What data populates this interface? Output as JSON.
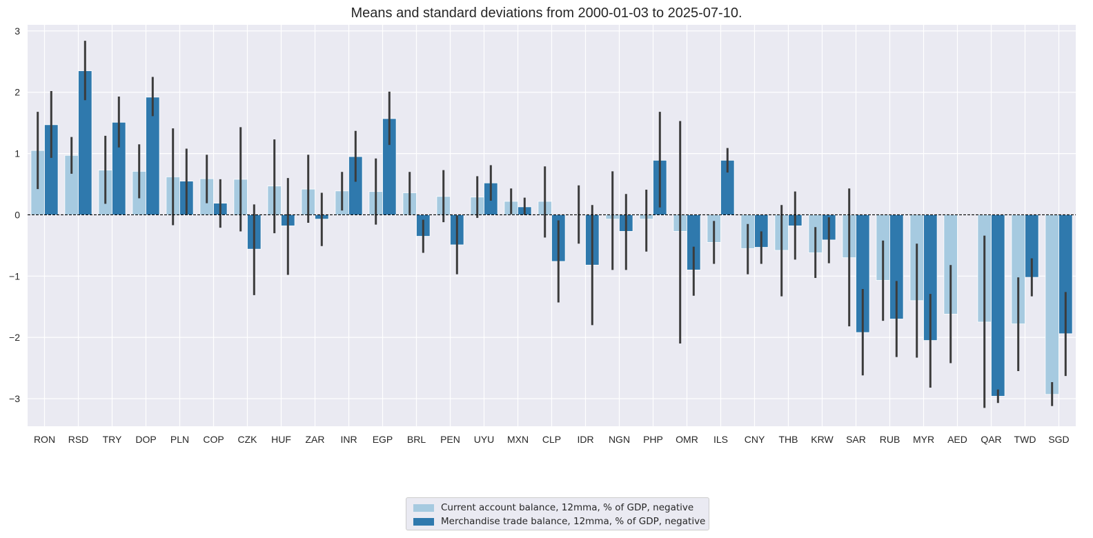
{
  "chart_data": {
    "type": "bar",
    "title": "Means and standard deviations from 2000-01-03 to 2025-07-10.",
    "xlabel": "",
    "ylabel": "",
    "ylim": [
      -3.45,
      3.1
    ],
    "yticks": [
      3,
      2,
      1,
      0,
      -1,
      -2,
      -3
    ],
    "ytick_labels": [
      "3",
      "2",
      "1",
      "0",
      "−1",
      "−2",
      "−3"
    ],
    "grid": true,
    "legend_position": "bottom-center",
    "zero_line": "dashed",
    "error_bars": true,
    "categories": [
      "RON",
      "RSD",
      "TRY",
      "DOP",
      "PLN",
      "COP",
      "CZK",
      "HUF",
      "ZAR",
      "INR",
      "EGP",
      "BRL",
      "PEN",
      "UYU",
      "MXN",
      "CLP",
      "IDR",
      "NGN",
      "PHP",
      "OMR",
      "ILS",
      "CNY",
      "THB",
      "KRW",
      "SAR",
      "RUB",
      "MYR",
      "AED",
      "QAR",
      "TWD",
      "SGD"
    ],
    "series": [
      {
        "name": "Current account balance, 12mma, % of GDP, negative",
        "color": "#a6cae0",
        "values": [
          1.05,
          0.97,
          0.73,
          0.71,
          0.62,
          0.59,
          0.58,
          0.47,
          0.42,
          0.39,
          0.38,
          0.36,
          0.3,
          0.29,
          0.22,
          0.22,
          0.0,
          -0.07,
          -0.07,
          -0.27,
          -0.45,
          -0.55,
          -0.58,
          -0.62,
          -0.7,
          -1.07,
          -1.4,
          -1.62,
          -1.75,
          -1.78,
          -2.93
        ],
        "error_low": [
          0.42,
          0.67,
          0.18,
          0.27,
          -0.17,
          0.19,
          -0.27,
          -0.3,
          -0.13,
          0.07,
          -0.16,
          0.01,
          -0.12,
          -0.05,
          0.01,
          -0.37,
          -0.47,
          -0.9,
          -0.6,
          -2.1,
          -0.8,
          -0.97,
          -1.33,
          -1.03,
          -1.82,
          -1.73,
          -2.33,
          -2.42,
          -3.15,
          -2.55,
          -3.12
        ],
        "error_high": [
          1.68,
          1.27,
          1.29,
          1.15,
          1.41,
          0.98,
          1.43,
          1.23,
          0.98,
          0.7,
          0.92,
          0.7,
          0.73,
          0.63,
          0.43,
          0.79,
          0.48,
          0.71,
          0.41,
          1.53,
          -0.1,
          -0.15,
          0.16,
          -0.2,
          0.43,
          -0.42,
          -0.47,
          -0.82,
          -0.34,
          -1.02,
          -2.73
        ]
      },
      {
        "name": "Merchandise trade balance, 12mma, % of GDP, negative",
        "color": "#2f79ad",
        "values": [
          1.47,
          2.35,
          1.51,
          1.92,
          0.55,
          0.19,
          -0.56,
          -0.18,
          -0.07,
          0.95,
          1.57,
          -0.35,
          -0.49,
          0.52,
          0.13,
          -0.76,
          -0.82,
          -0.27,
          0.89,
          -0.9,
          0.89,
          -0.53,
          -0.18,
          -0.41,
          -1.92,
          -1.7,
          -2.05,
          0.0,
          -2.96,
          -1.02,
          -1.94
        ],
        "error_low": [
          0.93,
          1.87,
          1.1,
          1.61,
          0.01,
          -0.21,
          -1.31,
          -0.98,
          -0.51,
          0.54,
          1.14,
          -0.62,
          -0.97,
          0.23,
          0.0,
          -1.43,
          -1.8,
          -0.9,
          0.12,
          -1.32,
          0.69,
          -0.8,
          -0.73,
          -0.79,
          -2.62,
          -2.32,
          -2.82,
          0.0,
          -3.07,
          -1.33,
          -2.63
        ],
        "error_high": [
          2.02,
          2.84,
          1.93,
          2.25,
          1.08,
          0.58,
          0.17,
          0.6,
          0.36,
          1.37,
          2.01,
          -0.08,
          -0.01,
          0.81,
          0.28,
          -0.09,
          0.16,
          0.34,
          1.68,
          -0.52,
          1.09,
          -0.27,
          0.38,
          -0.04,
          -1.21,
          -1.08,
          -1.29,
          0.0,
          -2.85,
          -0.71,
          -1.26
        ]
      }
    ]
  }
}
